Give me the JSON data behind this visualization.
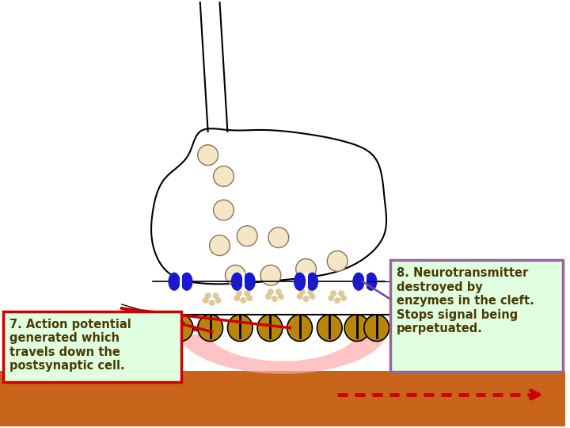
{
  "bg_color": "#ffffff",
  "ground_color": "#c8651a",
  "vesicle_fill": "#f5e6c8",
  "vesicle_edge": "#8B7355",
  "channel_color": "#1a1acc",
  "cleft_enzyme_color": "#d4b87a",
  "receptor_fill": "#b8860b",
  "receptor_edge": "#000000",
  "pink_color": "#ffaaaa",
  "label7_text": "7. Action potential\ngenerated which\ntravels down the\npostsynaptic cell.",
  "label7_fill": "#e0ffe0",
  "label7_edge": "#cc0000",
  "label8_text": "8. Neurotransmitter\ndestroyed by\nenzymes in the cleft.\nStops signal being\nperpetuated.",
  "label8_fill": "#e0ffe0",
  "label8_edge": "#996699",
  "text_color": "#4a3a00",
  "red_color": "#cc0000",
  "purple_color": "#7744aa",
  "black": "#000000"
}
